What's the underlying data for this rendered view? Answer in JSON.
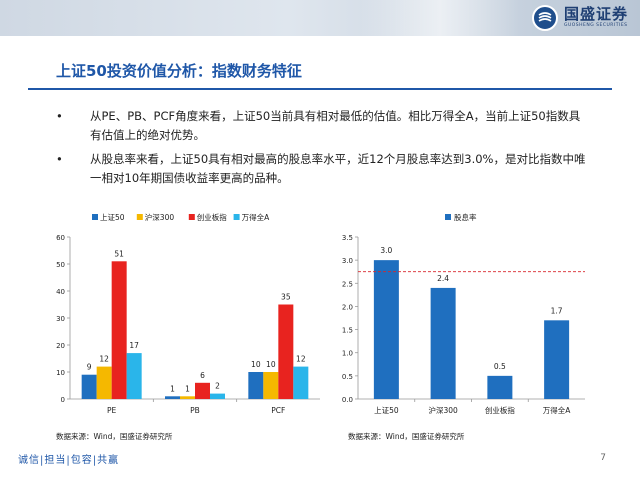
{
  "header": {
    "logo_cn": "国盛证券",
    "logo_en": "GUOSHENG SECURITIES"
  },
  "title": "上证50投资价值分析：指数财务特征",
  "bullets": [
    "从PE、PB、PCF角度来看，上证50当前具有相对最低的估值。相比万得全A，当前上证50指数具有估值上的绝对优势。",
    "从股息率来看，上证50具有相对最高的股息率水平，近12个月股息率达到3.0%，是对比指数中唯一相对10年期国债收益率更高的品种。"
  ],
  "chart_data": [
    {
      "type": "bar",
      "categories": [
        "PE",
        "PB",
        "PCF"
      ],
      "series": [
        {
          "name": "上证50",
          "values": [
            9,
            1,
            10
          ],
          "color": "#1f6fbf"
        },
        {
          "name": "沪深300",
          "values": [
            12,
            1,
            10
          ],
          "color": "#f5b800"
        },
        {
          "name": "创业板指",
          "values": [
            51,
            6,
            35
          ],
          "color": "#e8231f"
        },
        {
          "name": "万得全A",
          "values": [
            17,
            2,
            12
          ],
          "color": "#2ab5ea"
        }
      ],
      "ylim": [
        0,
        60
      ],
      "yticks": [
        0,
        10,
        20,
        30,
        40,
        50,
        60
      ],
      "legend": "top",
      "grid": false
    },
    {
      "type": "bar",
      "categories": [
        "上证50",
        "沪深300",
        "创业板指",
        "万得全A"
      ],
      "series": [
        {
          "name": "股息率",
          "values": [
            3.0,
            2.4,
            0.5,
            1.7
          ],
          "color": "#1f6fbf"
        }
      ],
      "value_labels": [
        "3.0",
        "2.4",
        "0.5",
        "1.7"
      ],
      "ylim": [
        0,
        3.5
      ],
      "yticks": [
        "0.0",
        "0.5",
        "1.0",
        "1.5",
        "2.0",
        "2.5",
        "3.0",
        "3.5"
      ],
      "reference_line": {
        "value": 2.75,
        "color": "#d9262b",
        "style": "dashed"
      },
      "legend": "top",
      "grid": false
    }
  ],
  "sources": {
    "left": "数据来源：Wind，国盛证券研究所",
    "right": "数据来源：Wind，国盛证券研究所"
  },
  "footer": {
    "motto": "诚信|担当|包容|共赢",
    "page": "7"
  }
}
